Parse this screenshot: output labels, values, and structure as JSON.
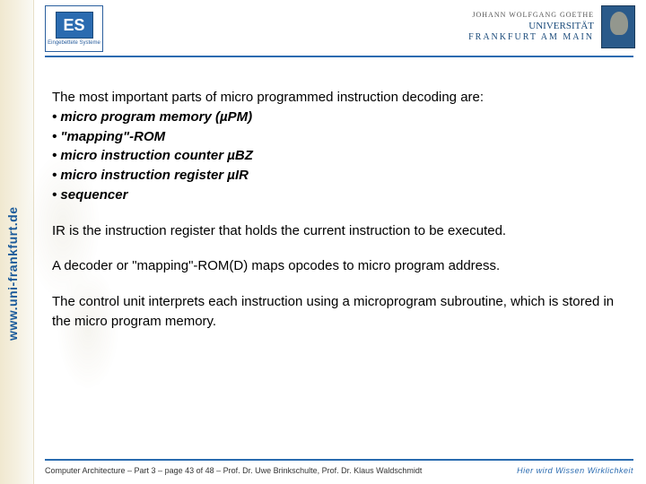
{
  "sidebar": {
    "url": "www.uni-frankfurt.de"
  },
  "header": {
    "logo_left": {
      "abbrev": "ES",
      "label": "Eingebettete Systeme"
    },
    "uni": {
      "line1": "JOHANN WOLFGANG GOETHE",
      "line2": "UNIVERSITÄT",
      "line3": "FRANKFURT AM MAIN"
    }
  },
  "content": {
    "intro1": "The most important parts of micro programmed instruction decoding are:",
    "bullets": [
      "micro program memory (µPM)",
      "\"mapping\"-ROM",
      "micro instruction counter µBZ",
      "micro instruction register µIR",
      "sequencer"
    ],
    "para2": "IR is the instruction register that holds the current instruction to be executed.",
    "para3": "A decoder or \"mapping\"-ROM(D) maps opcodes to micro program address.",
    "para4": "The control unit interprets each instruction using a microprogram subroutine, which is stored in the micro program memory."
  },
  "footer": {
    "left": "Computer Architecture – Part 3 – page 43 of 48 – Prof. Dr. Uwe Brinkschulte, Prof. Dr. Klaus Waldschmidt",
    "right": "Hier wird Wissen Wirklichkeit"
  },
  "colors": {
    "accent": "#2a6bb0",
    "sidebar_grad_start": "#f0e8d0",
    "text": "#000000"
  }
}
